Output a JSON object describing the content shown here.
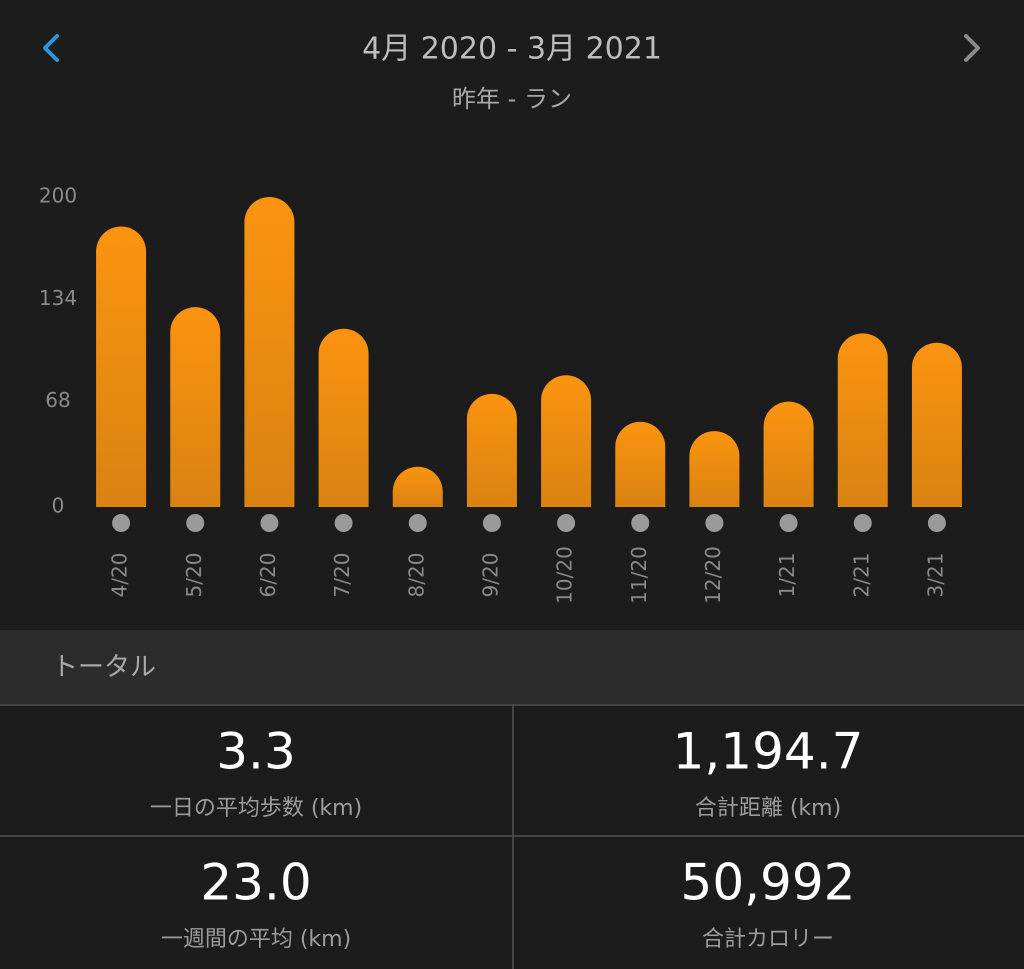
{
  "header": {
    "title": "4月 2020 - 3月 2021",
    "subtitle": "昨年 - ラン"
  },
  "chart_data": {
    "type": "bar",
    "categories": [
      "4/20",
      "5/20",
      "6/20",
      "7/20",
      "8/20",
      "9/20",
      "10/20",
      "11/20",
      "12/20",
      "1/21",
      "2/21",
      "3/21"
    ],
    "values": [
      181,
      129,
      200,
      115,
      26,
      73,
      85,
      55,
      49,
      68,
      112,
      106
    ],
    "color": "#fb9410",
    "ylim": [
      0,
      200
    ],
    "yticks": [
      0,
      68,
      134,
      200
    ],
    "grid": false
  },
  "totals": {
    "title": "トータル",
    "stats": [
      {
        "value": "3.3",
        "label": "一日の平均歩数 (km)"
      },
      {
        "value": "1,194.7",
        "label": "合計距離 (km)"
      },
      {
        "value": "23.0",
        "label": "一週間の平均 (km)"
      },
      {
        "value": "50,992",
        "label": "合計カロリー"
      }
    ]
  }
}
